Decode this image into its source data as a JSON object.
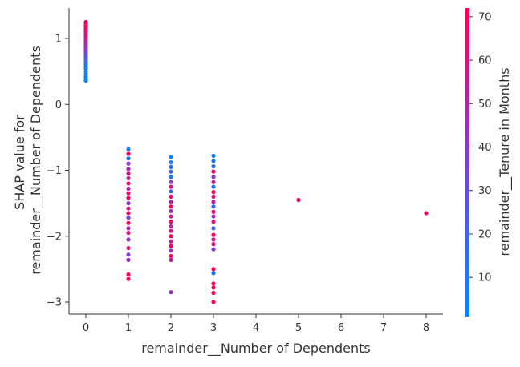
{
  "chart_data": {
    "type": "scatter",
    "title": "",
    "xlabel": "remainder__Number of Dependents",
    "ylabel_lines": [
      "SHAP value for",
      "remainder__Number of Dependents"
    ],
    "xlim": [
      -0.4,
      8.4
    ],
    "ylim": [
      -3.1,
      1.47
    ],
    "xticks": [
      0,
      1,
      2,
      3,
      4,
      5,
      6,
      7,
      8
    ],
    "yticks": [
      -3,
      -2,
      -1,
      0,
      1
    ],
    "xtick_labels": [
      "0",
      "1",
      "2",
      "3",
      "4",
      "5",
      "6",
      "7",
      "8"
    ],
    "ytick_labels": [
      "−3",
      "−2",
      "−1",
      "0",
      "1"
    ],
    "grid": false,
    "colorbar": {
      "label": "remainder__Tenure in Months",
      "range": [
        1,
        72
      ],
      "ticks": [
        10,
        20,
        30,
        40,
        50,
        60,
        70
      ],
      "tick_labels": [
        "10",
        "20",
        "30",
        "40",
        "50",
        "60",
        "70"
      ],
      "colormap": [
        "#008afb",
        "#7d3fd7",
        "#ff0052"
      ]
    },
    "points": [
      {
        "x": 0,
        "y": 1.25,
        "c": 72
      },
      {
        "x": 0,
        "y": 1.23,
        "c": 70
      },
      {
        "x": 0,
        "y": 1.2,
        "c": 68
      },
      {
        "x": 0,
        "y": 1.17,
        "c": 71
      },
      {
        "x": 0,
        "y": 1.14,
        "c": 66
      },
      {
        "x": 0,
        "y": 1.11,
        "c": 64
      },
      {
        "x": 0,
        "y": 1.08,
        "c": 60
      },
      {
        "x": 0,
        "y": 1.05,
        "c": 62
      },
      {
        "x": 0,
        "y": 1.02,
        "c": 58
      },
      {
        "x": 0,
        "y": 0.99,
        "c": 55
      },
      {
        "x": 0,
        "y": 0.96,
        "c": 52
      },
      {
        "x": 0,
        "y": 0.93,
        "c": 50
      },
      {
        "x": 0,
        "y": 0.9,
        "c": 48
      },
      {
        "x": 0,
        "y": 0.87,
        "c": 45
      },
      {
        "x": 0,
        "y": 0.84,
        "c": 42
      },
      {
        "x": 0,
        "y": 0.81,
        "c": 38
      },
      {
        "x": 0,
        "y": 0.78,
        "c": 35
      },
      {
        "x": 0,
        "y": 0.75,
        "c": 30
      },
      {
        "x": 0,
        "y": 0.72,
        "c": 26
      },
      {
        "x": 0,
        "y": 0.69,
        "c": 22
      },
      {
        "x": 0,
        "y": 0.66,
        "c": 18
      },
      {
        "x": 0,
        "y": 0.63,
        "c": 15
      },
      {
        "x": 0,
        "y": 0.6,
        "c": 12
      },
      {
        "x": 0,
        "y": 0.57,
        "c": 10
      },
      {
        "x": 0,
        "y": 0.54,
        "c": 8
      },
      {
        "x": 0,
        "y": 0.5,
        "c": 6
      },
      {
        "x": 0,
        "y": 0.46,
        "c": 5
      },
      {
        "x": 0,
        "y": 0.42,
        "c": 4
      },
      {
        "x": 0,
        "y": 0.39,
        "c": 3
      },
      {
        "x": 0,
        "y": 0.36,
        "c": 2
      },
      {
        "x": 1,
        "y": -0.68,
        "c": 8
      },
      {
        "x": 1,
        "y": -0.75,
        "c": 70
      },
      {
        "x": 1,
        "y": -0.82,
        "c": 12
      },
      {
        "x": 1,
        "y": -0.9,
        "c": 40
      },
      {
        "x": 1,
        "y": -0.98,
        "c": 45
      },
      {
        "x": 1,
        "y": -1.05,
        "c": 60
      },
      {
        "x": 1,
        "y": -1.12,
        "c": 55
      },
      {
        "x": 1,
        "y": -1.2,
        "c": 66
      },
      {
        "x": 1,
        "y": -1.28,
        "c": 50
      },
      {
        "x": 1,
        "y": -1.35,
        "c": 62
      },
      {
        "x": 1,
        "y": -1.42,
        "c": 68
      },
      {
        "x": 1,
        "y": -1.5,
        "c": 40
      },
      {
        "x": 1,
        "y": -1.58,
        "c": 58
      },
      {
        "x": 1,
        "y": -1.65,
        "c": 65
      },
      {
        "x": 1,
        "y": -1.72,
        "c": 35
      },
      {
        "x": 1,
        "y": -1.8,
        "c": 70
      },
      {
        "x": 1,
        "y": -1.88,
        "c": 48
      },
      {
        "x": 1,
        "y": -1.95,
        "c": 60
      },
      {
        "x": 1,
        "y": -2.05,
        "c": 42
      },
      {
        "x": 1,
        "y": -2.18,
        "c": 64
      },
      {
        "x": 1,
        "y": -2.28,
        "c": 38
      },
      {
        "x": 1,
        "y": -2.36,
        "c": 45
      },
      {
        "x": 1,
        "y": -2.58,
        "c": 72
      },
      {
        "x": 1,
        "y": -2.65,
        "c": 70
      },
      {
        "x": 2,
        "y": -0.8,
        "c": 5
      },
      {
        "x": 2,
        "y": -0.88,
        "c": 10
      },
      {
        "x": 2,
        "y": -0.95,
        "c": 14
      },
      {
        "x": 2,
        "y": -1.02,
        "c": 20
      },
      {
        "x": 2,
        "y": -1.1,
        "c": 8
      },
      {
        "x": 2,
        "y": -1.18,
        "c": 40
      },
      {
        "x": 2,
        "y": -1.25,
        "c": 60
      },
      {
        "x": 2,
        "y": -1.32,
        "c": 16
      },
      {
        "x": 2,
        "y": -1.4,
        "c": 65
      },
      {
        "x": 2,
        "y": -1.48,
        "c": 52
      },
      {
        "x": 2,
        "y": -1.55,
        "c": 70
      },
      {
        "x": 2,
        "y": -1.62,
        "c": 45
      },
      {
        "x": 2,
        "y": -1.7,
        "c": 58
      },
      {
        "x": 2,
        "y": -1.78,
        "c": 66
      },
      {
        "x": 2,
        "y": -1.85,
        "c": 48
      },
      {
        "x": 2,
        "y": -1.92,
        "c": 62
      },
      {
        "x": 2,
        "y": -2.0,
        "c": 70
      },
      {
        "x": 2,
        "y": -2.08,
        "c": 55
      },
      {
        "x": 2,
        "y": -2.15,
        "c": 68
      },
      {
        "x": 2,
        "y": -2.22,
        "c": 40
      },
      {
        "x": 2,
        "y": -2.3,
        "c": 72
      },
      {
        "x": 2,
        "y": -2.36,
        "c": 50
      },
      {
        "x": 2,
        "y": -2.85,
        "c": 42
      },
      {
        "x": 3,
        "y": -0.78,
        "c": 5
      },
      {
        "x": 3,
        "y": -0.86,
        "c": 10
      },
      {
        "x": 3,
        "y": -0.94,
        "c": 14
      },
      {
        "x": 3,
        "y": -1.02,
        "c": 68
      },
      {
        "x": 3,
        "y": -1.1,
        "c": 40
      },
      {
        "x": 3,
        "y": -1.18,
        "c": 58
      },
      {
        "x": 3,
        "y": -1.25,
        "c": 12
      },
      {
        "x": 3,
        "y": -1.33,
        "c": 70
      },
      {
        "x": 3,
        "y": -1.4,
        "c": 62
      },
      {
        "x": 3,
        "y": -1.48,
        "c": 50
      },
      {
        "x": 3,
        "y": -1.55,
        "c": 18
      },
      {
        "x": 3,
        "y": -1.63,
        "c": 66
      },
      {
        "x": 3,
        "y": -1.7,
        "c": 45
      },
      {
        "x": 3,
        "y": -1.78,
        "c": 60
      },
      {
        "x": 3,
        "y": -1.88,
        "c": 22
      },
      {
        "x": 3,
        "y": -1.98,
        "c": 70
      },
      {
        "x": 3,
        "y": -2.05,
        "c": 55
      },
      {
        "x": 3,
        "y": -2.12,
        "c": 64
      },
      {
        "x": 3,
        "y": -2.2,
        "c": 38
      },
      {
        "x": 3,
        "y": -2.5,
        "c": 72
      },
      {
        "x": 3,
        "y": -2.56,
        "c": 8
      },
      {
        "x": 3,
        "y": -2.72,
        "c": 70
      },
      {
        "x": 3,
        "y": -2.78,
        "c": 68
      },
      {
        "x": 3,
        "y": -2.86,
        "c": 72
      },
      {
        "x": 3,
        "y": -3.0,
        "c": 70
      },
      {
        "x": 5,
        "y": -1.45,
        "c": 70
      },
      {
        "x": 8,
        "y": -1.65,
        "c": 70
      }
    ]
  }
}
